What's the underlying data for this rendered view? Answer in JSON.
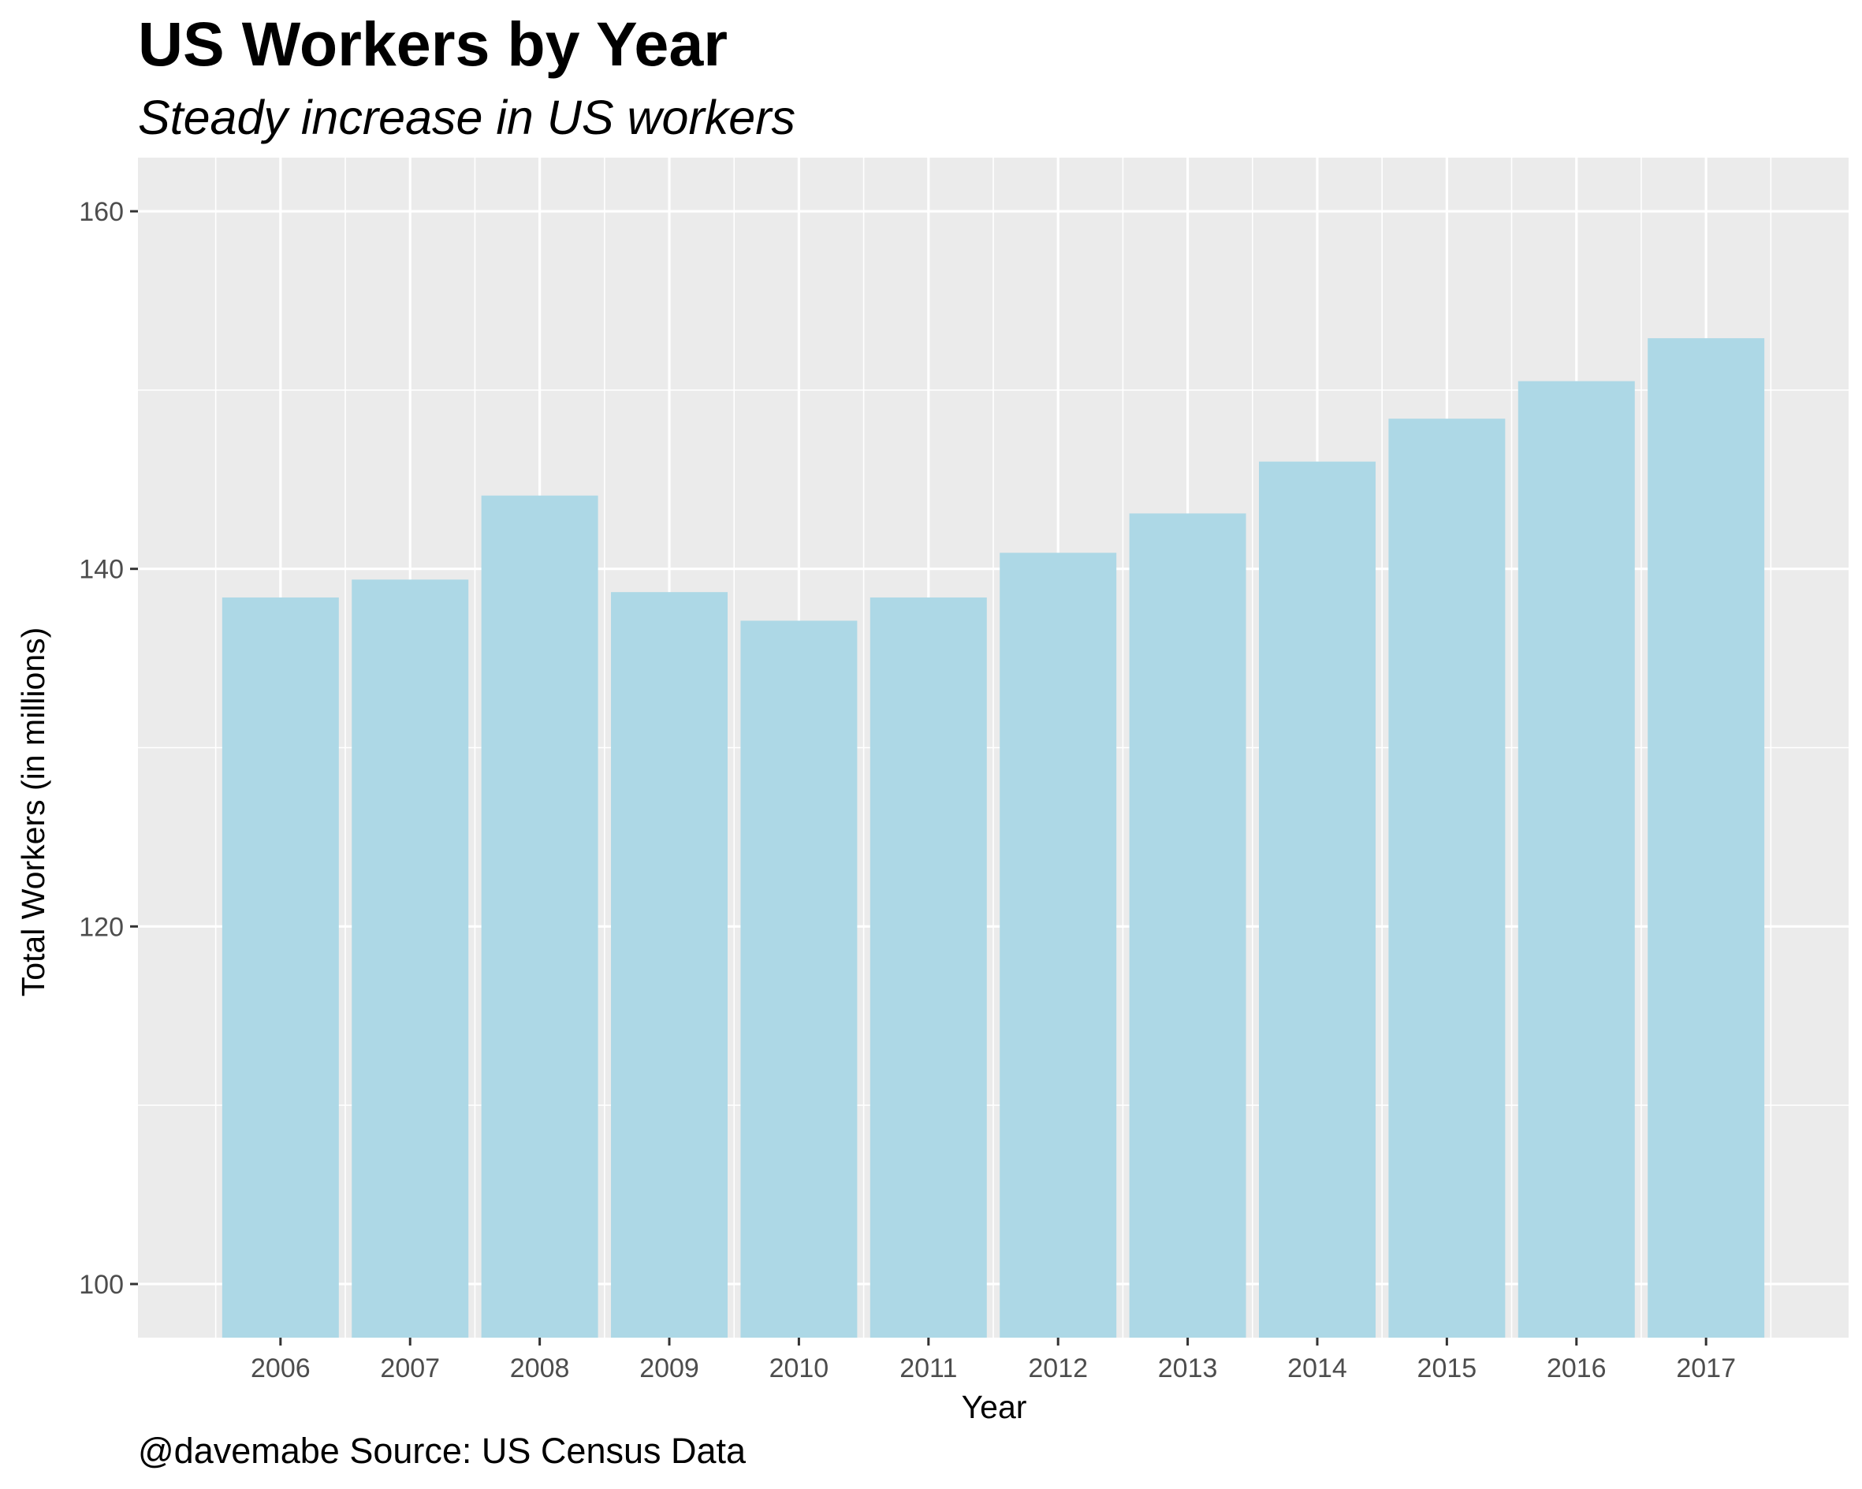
{
  "chart_data": {
    "type": "bar",
    "title": "US Workers by Year",
    "subtitle": "Steady increase in US workers",
    "caption": "@davemabe Source: US Census Data",
    "xlabel": "Year",
    "ylabel": "Total Workers (in millions)",
    "categories": [
      "2006",
      "2007",
      "2008",
      "2009",
      "2010",
      "2011",
      "2012",
      "2013",
      "2014",
      "2015",
      "2016",
      "2017"
    ],
    "values": [
      138.4,
      139.4,
      144.1,
      138.7,
      137.1,
      138.4,
      140.9,
      143.1,
      146.0,
      148.4,
      150.5,
      152.9
    ],
    "ylim": [
      97,
      163
    ],
    "yticks": [
      100,
      120,
      140,
      160
    ],
    "ytick_labels": [
      "100",
      "120",
      "140",
      "160"
    ],
    "grid": true,
    "legend": "none",
    "bar_color": "#add8e6",
    "panel_background": "#ebebeb",
    "grid_color": "#ffffff"
  }
}
